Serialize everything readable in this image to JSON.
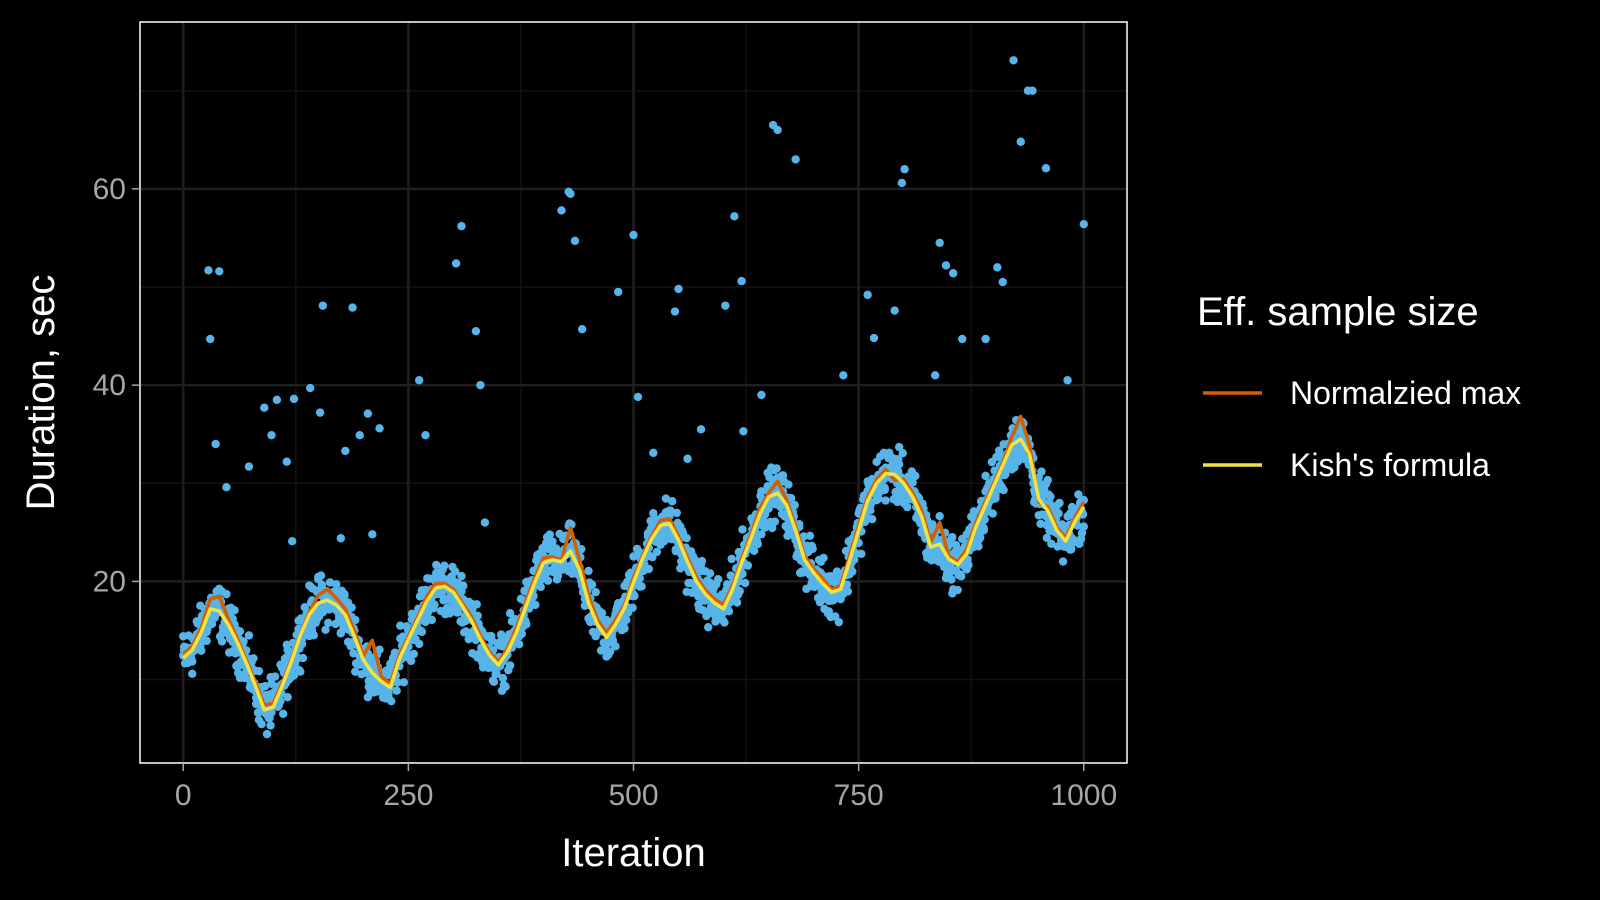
{
  "chart_data": {
    "type": "scatter",
    "title": "",
    "xlabel": "Iteration",
    "ylabel": "Duration, sec",
    "xlim": [
      -48,
      1048
    ],
    "ylim": [
      1.5,
      77
    ],
    "x_ticks": [
      0,
      250,
      500,
      750,
      1000
    ],
    "y_ticks": [
      20,
      40,
      60
    ],
    "x_tick_labels": [
      "0",
      "250",
      "500",
      "750",
      "1000"
    ],
    "y_tick_labels": [
      "20",
      "40",
      "60"
    ],
    "grid": true,
    "legend_position": "right",
    "legend_title": "Eff. sample size",
    "colors": {
      "background": "#000000",
      "panel_border": "#ffffff",
      "grid_major": "#1f1f1f",
      "grid_minor": "#121212",
      "points": "#56b4e9",
      "normalized_max": "#d55e00",
      "kish": "#f0e442"
    },
    "series": [
      {
        "name": "Normalzied max",
        "kind": "line",
        "color": "#d55e00",
        "x": [
          0,
          10,
          20,
          30,
          40,
          50,
          60,
          70,
          80,
          90,
          100,
          110,
          120,
          130,
          140,
          150,
          160,
          170,
          180,
          190,
          200,
          210,
          220,
          230,
          240,
          250,
          260,
          270,
          280,
          290,
          300,
          310,
          320,
          330,
          340,
          350,
          360,
          370,
          380,
          390,
          400,
          410,
          420,
          430,
          440,
          450,
          460,
          470,
          480,
          490,
          500,
          510,
          520,
          530,
          540,
          550,
          560,
          570,
          580,
          590,
          600,
          610,
          620,
          630,
          640,
          650,
          660,
          670,
          680,
          690,
          700,
          710,
          720,
          730,
          740,
          750,
          760,
          770,
          780,
          790,
          800,
          810,
          820,
          830,
          840,
          850,
          860,
          870,
          880,
          890,
          900,
          910,
          920,
          930,
          940,
          950,
          960,
          970,
          980,
          990,
          1000
        ],
        "y": [
          12.6,
          13.4,
          15.3,
          18.2,
          18.5,
          16.2,
          14.2,
          12.0,
          9.8,
          7.4,
          7.6,
          9.7,
          12.0,
          14.6,
          16.9,
          18.6,
          19.2,
          18.3,
          17.2,
          15.0,
          12.4,
          14.0,
          10.3,
          9.6,
          12.5,
          14.4,
          16.3,
          18.4,
          19.8,
          19.8,
          19.2,
          17.8,
          16.4,
          14.5,
          12.8,
          11.8,
          13.2,
          15.3,
          17.8,
          20.3,
          22.4,
          22.5,
          22.2,
          25.5,
          22.2,
          18.6,
          16.1,
          14.8,
          16.1,
          17.6,
          20.4,
          22.6,
          24.6,
          26.2,
          26.4,
          24.6,
          22.4,
          20.4,
          19.1,
          18.2,
          17.6,
          19.6,
          22.3,
          24.7,
          27.4,
          29.0,
          30.2,
          28.3,
          25.6,
          22.6,
          21.3,
          20.3,
          19.2,
          19.6,
          22.6,
          25.7,
          28.6,
          30.4,
          31.4,
          30.3,
          30.4,
          29.0,
          27.2,
          24.0,
          26.0,
          22.6,
          22.0,
          23.3,
          25.9,
          28.0,
          30.0,
          32.1,
          34.7,
          36.8,
          33.8,
          28.1,
          27.6,
          25.5,
          24.4,
          26.5,
          28.1
        ]
      },
      {
        "name": "Kish's formula",
        "kind": "line",
        "color": "#f0e442",
        "x": [
          0,
          10,
          20,
          30,
          40,
          50,
          60,
          70,
          80,
          90,
          100,
          110,
          120,
          130,
          140,
          150,
          160,
          170,
          180,
          190,
          200,
          210,
          220,
          230,
          240,
          250,
          260,
          270,
          280,
          290,
          300,
          310,
          320,
          330,
          340,
          350,
          360,
          370,
          380,
          390,
          400,
          410,
          420,
          430,
          440,
          450,
          460,
          470,
          480,
          490,
          500,
          510,
          520,
          530,
          540,
          550,
          560,
          570,
          580,
          590,
          600,
          610,
          620,
          630,
          640,
          650,
          660,
          670,
          680,
          690,
          700,
          710,
          720,
          730,
          740,
          750,
          760,
          770,
          780,
          790,
          800,
          810,
          820,
          830,
          840,
          850,
          860,
          870,
          880,
          890,
          900,
          910,
          920,
          930,
          940,
          950,
          960,
          970,
          980,
          990,
          1000
        ],
        "y": [
          12.2,
          13.0,
          14.8,
          17.2,
          17.0,
          15.6,
          13.8,
          11.7,
          9.4,
          6.9,
          7.2,
          9.4,
          11.8,
          14.5,
          16.6,
          17.8,
          18.1,
          17.6,
          16.6,
          14.4,
          12.0,
          10.7,
          9.8,
          9.2,
          12.1,
          14.1,
          16.0,
          17.9,
          19.3,
          19.5,
          18.9,
          17.5,
          16.0,
          14.1,
          12.5,
          11.5,
          12.8,
          14.8,
          17.3,
          19.8,
          21.9,
          22.2,
          22.0,
          23.1,
          21.2,
          17.8,
          15.6,
          14.3,
          15.6,
          17.3,
          19.9,
          22.3,
          24.3,
          25.7,
          25.9,
          24.2,
          22.0,
          20.0,
          18.7,
          17.8,
          17.2,
          19.2,
          21.9,
          24.3,
          26.8,
          28.6,
          29.0,
          27.8,
          25.2,
          22.2,
          20.9,
          19.8,
          18.9,
          19.2,
          22.1,
          25.2,
          28.2,
          30.0,
          31.0,
          30.9,
          30.0,
          28.6,
          26.6,
          23.5,
          23.8,
          22.3,
          21.7,
          22.8,
          25.5,
          27.6,
          29.7,
          31.8,
          33.9,
          34.5,
          32.9,
          28.4,
          27.2,
          25.2,
          24.1,
          26.1,
          27.6
        ]
      },
      {
        "name": "",
        "kind": "points",
        "color": "#56b4e9",
        "x": [
          28,
          40,
          30,
          36,
          48,
          73,
          90,
          98,
          104,
          115,
          121,
          123,
          141,
          152,
          155,
          175,
          180,
          188,
          196,
          205,
          210,
          218,
          262,
          269,
          303,
          309,
          325,
          330,
          335,
          420,
          428,
          430,
          435,
          443,
          483,
          500,
          505,
          522,
          546,
          550,
          560,
          575,
          602,
          612,
          620,
          622,
          642,
          655,
          660,
          680,
          733,
          760,
          767,
          790,
          798,
          801,
          835,
          840,
          847,
          855,
          865,
          891,
          904,
          910,
          922,
          930,
          938,
          943,
          958,
          982,
          1000
        ],
        "y": [
          51.7,
          51.6,
          44.7,
          34.0,
          29.6,
          31.7,
          37.7,
          34.9,
          38.5,
          32.2,
          24.1,
          38.6,
          39.7,
          37.2,
          48.1,
          24.4,
          33.3,
          47.9,
          34.9,
          37.1,
          24.8,
          35.6,
          40.5,
          34.9,
          52.4,
          56.2,
          45.5,
          40.0,
          26.0,
          57.8,
          59.7,
          59.5,
          54.7,
          45.7,
          49.5,
          55.3,
          38.8,
          33.1,
          47.5,
          49.8,
          32.5,
          35.5,
          48.1,
          57.2,
          50.6,
          35.3,
          39.0,
          66.5,
          66.0,
          63.0,
          41.0,
          49.2,
          44.8,
          47.6,
          60.6,
          62.0,
          41.0,
          54.5,
          52.2,
          51.4,
          44.7,
          44.7,
          52.0,
          50.5,
          73.1,
          64.8,
          70.0,
          70.0,
          62.1,
          40.5,
          56.4
        ]
      }
    ]
  }
}
